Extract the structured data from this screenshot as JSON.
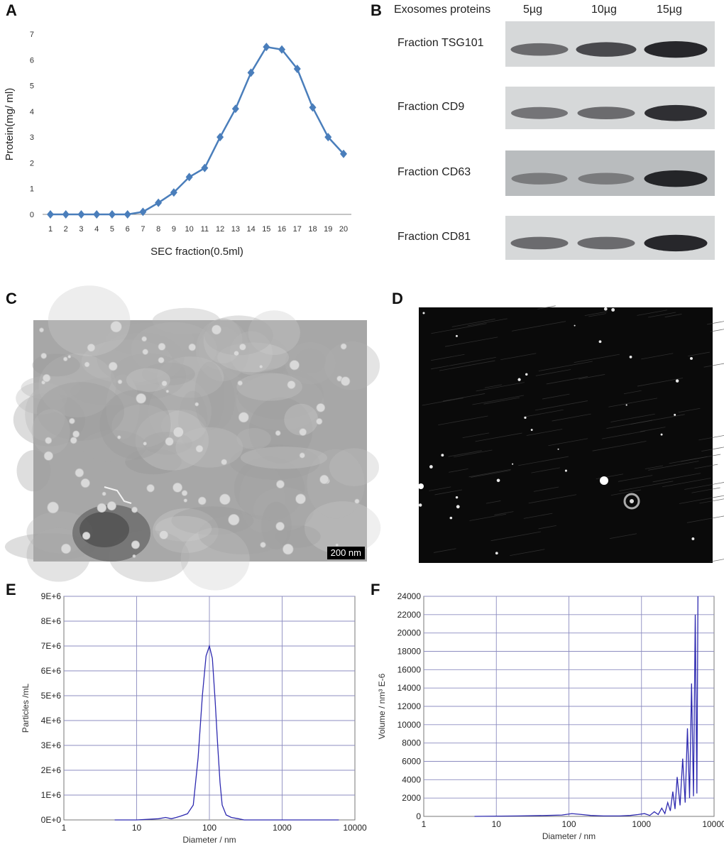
{
  "panels": {
    "A": "A",
    "B": "B",
    "C": "C",
    "D": "D",
    "E": "E",
    "F": "F"
  },
  "panelA": {
    "chart_data": {
      "type": "line",
      "title": "",
      "xlabel": "SEC fraction(0.5ml)",
      "ylabel": "Protein(mg/ ml)",
      "categories": [
        "1",
        "2",
        "3",
        "4",
        "5",
        "6",
        "7",
        "8",
        "9",
        "10",
        "11",
        "12",
        "13",
        "14",
        "15",
        "16",
        "17",
        "18",
        "19",
        "20"
      ],
      "values": [
        0,
        0,
        0,
        0,
        0,
        0,
        0.1,
        0.45,
        0.85,
        1.45,
        1.8,
        3.0,
        4.1,
        5.5,
        6.5,
        6.4,
        5.65,
        4.15,
        3.0,
        2.35
      ],
      "yticks": [
        "0",
        "1",
        "2",
        "3",
        "4",
        "5",
        "6",
        "7"
      ],
      "ylim": [
        0,
        7
      ],
      "color": "#4a7ebb"
    }
  },
  "panelB": {
    "header": "Exosomes proteins",
    "lanes": [
      "5µg",
      "10µg",
      "15µg"
    ],
    "rows": [
      {
        "label": "Fraction TSG101",
        "intensity": [
          0.55,
          0.75,
          0.95
        ]
      },
      {
        "label": "Fraction CD9",
        "intensity": [
          0.5,
          0.55,
          0.9
        ]
      },
      {
        "label": "Fraction CD63",
        "intensity": [
          0.45,
          0.45,
          0.95
        ]
      },
      {
        "label": "Fraction CD81",
        "intensity": [
          0.55,
          0.55,
          0.95
        ]
      }
    ]
  },
  "panelC": {
    "scale_bar": "200 nm"
  },
  "panelD": {},
  "panelE": {
    "chart_data": {
      "type": "line",
      "xlabel": "Diameter / nm",
      "ylabel": "Particles /mL",
      "xscale": "log",
      "xlim": [
        1,
        10000
      ],
      "xticks": [
        "1",
        "10",
        "100",
        "1000",
        "10000"
      ],
      "yticks": [
        "0E+0",
        "1E+6",
        "2E+6",
        "3E+6",
        "4E+6",
        "5E+6",
        "6E+6",
        "7E+6",
        "8E+6",
        "9E+6"
      ],
      "ylim": [
        0,
        9000000
      ],
      "color": "#2e2ab0",
      "x": [
        5,
        10,
        20,
        25,
        30,
        35,
        40,
        50,
        60,
        70,
        80,
        90,
        100,
        110,
        120,
        130,
        140,
        150,
        170,
        200,
        250,
        300,
        500,
        1000,
        6000
      ],
      "y": [
        0,
        0,
        50000,
        100000,
        50000,
        100000,
        150000,
        250000,
        600000,
        2500000,
        5000000,
        6600000,
        7000000,
        6500000,
        4800000,
        3000000,
        1500000,
        600000,
        200000,
        100000,
        50000,
        0,
        0,
        0,
        0
      ]
    }
  },
  "panelF": {
    "chart_data": {
      "type": "line",
      "xlabel": "Diameter / nm",
      "ylabel": "Volume / nm³ E-6",
      "xscale": "log",
      "xlim": [
        1,
        10000
      ],
      "xticks": [
        "1",
        "10",
        "100",
        "1000",
        "10000"
      ],
      "yticks": [
        "0",
        "2000",
        "4000",
        "6000",
        "8000",
        "10000",
        "12000",
        "14000",
        "16000",
        "18000",
        "20000",
        "22000",
        "24000"
      ],
      "ylim": [
        0,
        24000
      ],
      "color": "#2e2ab0",
      "x": [
        5,
        20,
        50,
        80,
        110,
        150,
        200,
        300,
        500,
        700,
        900,
        1100,
        1300,
        1500,
        1700,
        1900,
        2100,
        2300,
        2500,
        2700,
        2900,
        3100,
        3400,
        3700,
        4000,
        4300,
        4600,
        4900,
        5200,
        5500,
        5800,
        6000
      ],
      "y": [
        0,
        50,
        100,
        150,
        300,
        200,
        100,
        50,
        50,
        100,
        200,
        300,
        100,
        500,
        200,
        900,
        300,
        1500,
        600,
        2700,
        800,
        4300,
        1200,
        6300,
        1500,
        9600,
        2000,
        14500,
        2200,
        22000,
        2500,
        24000
      ]
    }
  }
}
